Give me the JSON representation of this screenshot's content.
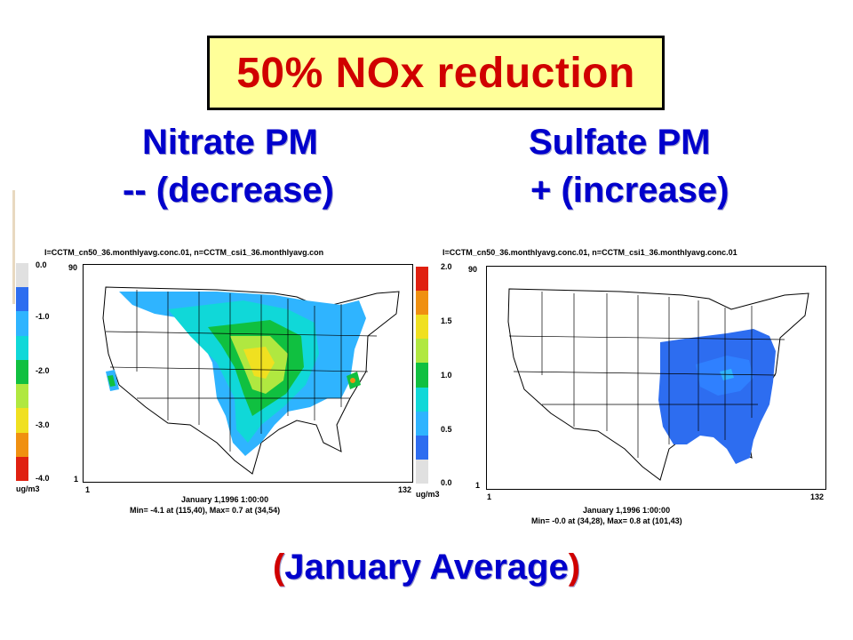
{
  "slide": {
    "title": "50% NOx reduction",
    "left_heading": {
      "line1": "Nitrate PM",
      "line2": "-- (decrease)"
    },
    "right_heading": {
      "line1": "Sulfate PM",
      "line2": "+ (increase)"
    },
    "footer": {
      "open": "(",
      "text": "January Average",
      "close": ")"
    }
  },
  "maps": {
    "nitrate": {
      "header": "I=CCTM_cn50_36.monthlyavg.conc.01, n=CCTM_csi1_36.monthlyavg.con",
      "scale_labels": [
        "0.0",
        "-1.0",
        "-2.0",
        "-3.0",
        "-4.0"
      ],
      "unit": "ug/m3",
      "y_top": "90",
      "y_bottom": "1",
      "x_left": "1",
      "x_right": "132",
      "date": "January 1,1996 1:00:00",
      "minmax": "Min=   -4.1 at (115,40), Max=    0.7 at (34,54)",
      "colors": [
        "#e0e0e0",
        "#2d6df0",
        "#2fb4ff",
        "#10d8d8",
        "#10c040",
        "#b0e840",
        "#f0e020",
        "#f09010",
        "#e02010"
      ]
    },
    "sulfate": {
      "header": "I=CCTM_cn50_36.monthlyavg.conc.01, n=CCTM_csi1_36.monthlyavg.conc.01",
      "scale_labels": [
        "2.0",
        "1.5",
        "1.0",
        "0.5",
        "0.0"
      ],
      "unit": "ug/m3",
      "y_top": "90",
      "y_bottom": "1",
      "x_left": "1",
      "x_right": "132",
      "date": "January 1,1996 1:00:00",
      "minmax": "Min=   -0.0 at (34,28), Max=    0.8 at (101,43)",
      "colors": [
        "#e02010",
        "#f09010",
        "#f0e020",
        "#b0e840",
        "#10c040",
        "#10d8d8",
        "#2fb4ff",
        "#2d6df0",
        "#e0e0e0"
      ]
    }
  }
}
